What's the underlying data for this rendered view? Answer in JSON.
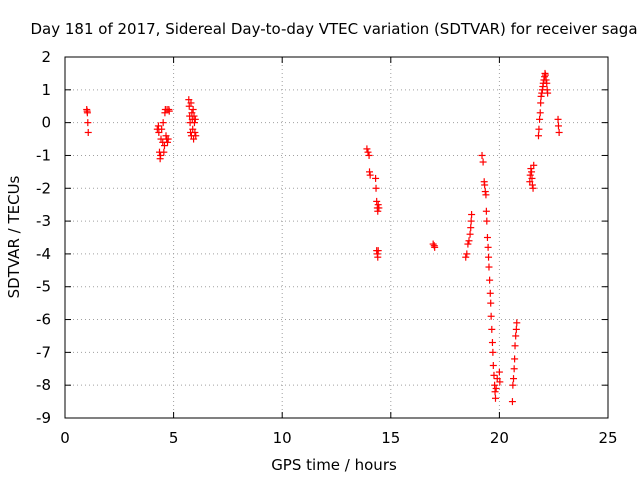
{
  "chart_data": {
    "type": "scatter",
    "title": "Day 181 of 2017, Sidereal Day-to-day VTEC variation (SDTVAR) for receiver saga",
    "xlabel": "GPS time / hours",
    "ylabel": "SDTVAR / TECUs",
    "xlim": [
      0,
      25
    ],
    "ylim": [
      -9,
      2
    ],
    "xticks": [
      0,
      5,
      10,
      15,
      20,
      25
    ],
    "yticks": [
      -9,
      -8,
      -7,
      -6,
      -5,
      -4,
      -3,
      -2,
      -1,
      0,
      1,
      2
    ],
    "grid": true,
    "marker": "+",
    "color": "#ff0000",
    "series": [
      {
        "name": "SDTVAR",
        "points": [
          [
            1.0,
            0.4
          ],
          [
            1.02,
            0.35
          ],
          [
            1.03,
            0.3
          ],
          [
            1.05,
            0.0
          ],
          [
            1.07,
            -0.3
          ],
          [
            4.25,
            -0.2
          ],
          [
            4.3,
            -0.1
          ],
          [
            4.32,
            -0.3
          ],
          [
            4.35,
            -0.9
          ],
          [
            4.38,
            -1.1
          ],
          [
            4.4,
            -1.0
          ],
          [
            4.42,
            -0.5
          ],
          [
            4.45,
            -0.2
          ],
          [
            4.5,
            -0.6
          ],
          [
            4.52,
            0.0
          ],
          [
            4.55,
            -0.9
          ],
          [
            4.58,
            -0.7
          ],
          [
            4.6,
            0.3
          ],
          [
            4.62,
            0.4
          ],
          [
            4.65,
            -0.4
          ],
          [
            4.68,
            -0.5
          ],
          [
            4.7,
            0.4
          ],
          [
            4.72,
            -0.6
          ],
          [
            4.75,
            -0.5
          ],
          [
            4.78,
            0.4
          ],
          [
            4.8,
            0.35
          ],
          [
            5.7,
            0.7
          ],
          [
            5.72,
            0.5
          ],
          [
            5.74,
            0.2
          ],
          [
            5.76,
            0.0
          ],
          [
            5.78,
            -0.3
          ],
          [
            5.8,
            0.6
          ],
          [
            5.82,
            -0.4
          ],
          [
            5.84,
            0.3
          ],
          [
            5.86,
            0.1
          ],
          [
            5.88,
            -0.2
          ],
          [
            5.9,
            0.4
          ],
          [
            5.92,
            -0.5
          ],
          [
            5.94,
            0.2
          ],
          [
            5.96,
            0.0
          ],
          [
            5.98,
            -0.3
          ],
          [
            6.0,
            0.1
          ],
          [
            6.02,
            -0.4
          ],
          [
            13.9,
            -0.8
          ],
          [
            13.95,
            -0.9
          ],
          [
            14.0,
            -1.0
          ],
          [
            14.02,
            -1.5
          ],
          [
            14.05,
            -1.6
          ],
          [
            14.3,
            -1.7
          ],
          [
            14.32,
            -2.0
          ],
          [
            14.35,
            -2.4
          ],
          [
            14.38,
            -2.6
          ],
          [
            14.4,
            -2.7
          ],
          [
            14.42,
            -2.5
          ],
          [
            14.45,
            -2.6
          ],
          [
            14.35,
            -3.9
          ],
          [
            14.38,
            -4.0
          ],
          [
            14.4,
            -4.1
          ],
          [
            14.42,
            -3.9
          ],
          [
            16.95,
            -3.7
          ],
          [
            17.0,
            -3.75
          ],
          [
            17.02,
            -3.8
          ],
          [
            18.45,
            -4.1
          ],
          [
            18.5,
            -4.0
          ],
          [
            18.55,
            -3.7
          ],
          [
            18.6,
            -3.6
          ],
          [
            18.65,
            -3.4
          ],
          [
            18.68,
            -3.2
          ],
          [
            18.7,
            -3.0
          ],
          [
            18.72,
            -2.8
          ],
          [
            19.2,
            -1.0
          ],
          [
            19.25,
            -1.2
          ],
          [
            19.3,
            -1.8
          ],
          [
            19.32,
            -1.9
          ],
          [
            19.35,
            -2.1
          ],
          [
            19.38,
            -2.2
          ],
          [
            19.4,
            -2.7
          ],
          [
            19.42,
            -3.0
          ],
          [
            19.45,
            -3.5
          ],
          [
            19.48,
            -3.8
          ],
          [
            19.5,
            -4.1
          ],
          [
            19.52,
            -4.4
          ],
          [
            19.55,
            -4.8
          ],
          [
            19.58,
            -5.2
          ],
          [
            19.6,
            -5.5
          ],
          [
            19.62,
            -5.9
          ],
          [
            19.65,
            -6.3
          ],
          [
            19.68,
            -6.7
          ],
          [
            19.7,
            -7.0
          ],
          [
            19.72,
            -7.4
          ],
          [
            19.75,
            -7.7
          ],
          [
            19.78,
            -8.0
          ],
          [
            19.8,
            -8.2
          ],
          [
            19.82,
            -8.4
          ],
          [
            19.85,
            -8.1
          ],
          [
            19.9,
            -7.8
          ],
          [
            20.0,
            -7.6
          ],
          [
            20.02,
            -7.9
          ],
          [
            20.6,
            -8.5
          ],
          [
            20.62,
            -8.0
          ],
          [
            20.65,
            -7.8
          ],
          [
            20.68,
            -7.5
          ],
          [
            20.7,
            -7.2
          ],
          [
            20.72,
            -6.8
          ],
          [
            20.75,
            -6.5
          ],
          [
            20.78,
            -6.3
          ],
          [
            20.8,
            -6.1
          ],
          [
            21.4,
            -1.8
          ],
          [
            21.42,
            -1.6
          ],
          [
            21.45,
            -1.4
          ],
          [
            21.48,
            -1.5
          ],
          [
            21.5,
            -1.7
          ],
          [
            21.52,
            -1.9
          ],
          [
            21.55,
            -2.0
          ],
          [
            21.58,
            -1.3
          ],
          [
            21.8,
            -0.4
          ],
          [
            21.82,
            -0.2
          ],
          [
            21.85,
            0.1
          ],
          [
            21.88,
            0.3
          ],
          [
            21.9,
            0.6
          ],
          [
            21.92,
            0.8
          ],
          [
            21.95,
            0.9
          ],
          [
            21.98,
            1.0
          ],
          [
            22.0,
            1.1
          ],
          [
            22.02,
            1.2
          ],
          [
            22.05,
            1.3
          ],
          [
            22.08,
            1.4
          ],
          [
            22.1,
            1.5
          ],
          [
            22.12,
            1.45
          ],
          [
            22.15,
            1.3
          ],
          [
            22.18,
            1.2
          ],
          [
            22.2,
            1.0
          ],
          [
            22.22,
            0.9
          ],
          [
            22.7,
            0.1
          ],
          [
            22.72,
            -0.1
          ],
          [
            22.75,
            -0.3
          ]
        ]
      }
    ]
  }
}
